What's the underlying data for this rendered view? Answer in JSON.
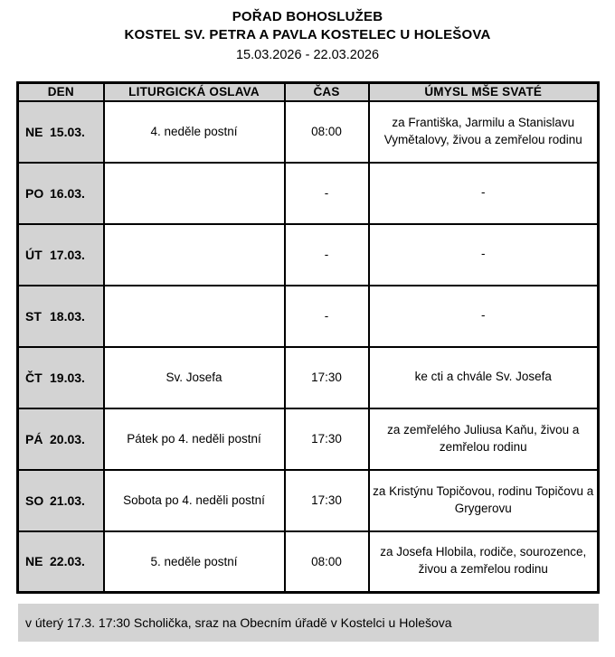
{
  "header": {
    "title": "POŘAD BOHOSLUŽEB",
    "church": "KOSTEL SV. PETRA A PAVLA KOSTELEC U HOLEŠOVA",
    "date_range": "15.03.2026 - 22.03.2026"
  },
  "table": {
    "columns": [
      "DEN",
      "LITURGICKÁ OSLAVA",
      "ČAS",
      "ÚMYSL MŠE SVATÉ"
    ],
    "rows": [
      {
        "day": "NE",
        "date": "15.03.",
        "celebration": "4. neděle postní",
        "time": "08:00",
        "intention": "za Františka, Jarmilu a Stanislavu Vymětalovy, živou a zemřelou rodinu"
      },
      {
        "day": "PO",
        "date": "16.03.",
        "celebration": "",
        "time": "-",
        "intention": "-"
      },
      {
        "day": "ÚT",
        "date": "17.03.",
        "celebration": "",
        "time": "-",
        "intention": "-"
      },
      {
        "day": "ST",
        "date": "18.03.",
        "celebration": "",
        "time": "-",
        "intention": "-"
      },
      {
        "day": "ČT",
        "date": "19.03.",
        "celebration": "Sv. Josefa",
        "time": "17:30",
        "intention": "ke cti a chvále Sv. Josefa"
      },
      {
        "day": "PÁ",
        "date": "20.03.",
        "celebration": "Pátek po 4. neděli postní",
        "time": "17:30",
        "intention": "za zemřelého Juliusa Kaňu, živou a zemřelou rodinu"
      },
      {
        "day": "SO",
        "date": "21.03.",
        "celebration": "Sobota po 4. neděli postní",
        "time": "17:30",
        "intention": "za Kristýnu Topičovou, rodinu Topičovu a Grygerovu"
      },
      {
        "day": "NE",
        "date": "22.03.",
        "celebration": "5. neděle postní",
        "time": "08:00",
        "intention": "za Josefa Hlobila, rodiče, sourozence, živou a zemřelou rodinu"
      }
    ]
  },
  "footer": {
    "note": "v úterý 17.3. 17:30 Scholička, sraz na Obecním úřadě v Kostelci u Holešova"
  },
  "colors": {
    "header_bg": "#d3d3d3",
    "note_bg": "#d3d3d3",
    "border": "#000000",
    "page_bg": "#ffffff"
  }
}
